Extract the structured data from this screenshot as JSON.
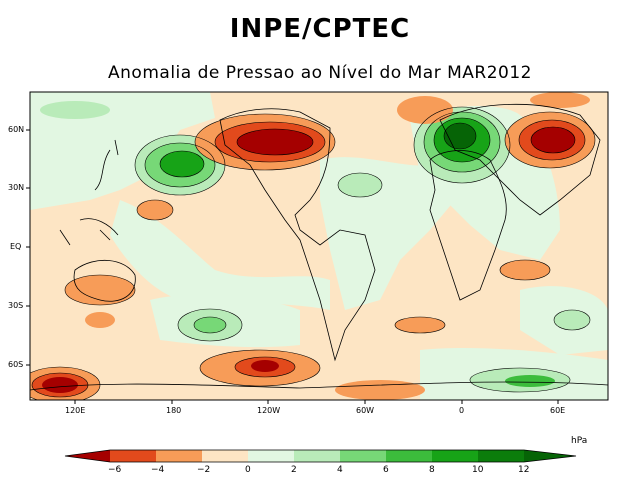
{
  "header": {
    "title": "INPE/CPTEC",
    "subtitle": "Anomalia de Pressao ao Nível do Mar MAR2012"
  },
  "axes": {
    "lon_labels": [
      "120E",
      "180",
      "120W",
      "60W",
      "0",
      "60E"
    ],
    "lat_labels": [
      "60N",
      "30N",
      "EQ",
      "30S",
      "60S"
    ]
  },
  "legend": {
    "unit": "hPa",
    "tick_labels": [
      "−6",
      "−4",
      "−2",
      "0",
      "2",
      "4",
      "6",
      "8",
      "10",
      "12"
    ],
    "colors": [
      "#a50000",
      "#e24a1c",
      "#f79c58",
      "#fde5c4",
      "#e2f7e2",
      "#b9ebb9",
      "#77d877",
      "#3cbc3c",
      "#17a317",
      "#0b7d0b",
      "#066406"
    ]
  },
  "colors": {
    "neutral": "#fde5c4",
    "positive_light": "#e2f7e2",
    "positive_medium": "#77d877",
    "positive_strong": "#17a317",
    "negative_light": "#f79c58",
    "negative_strong": "#a50000"
  }
}
